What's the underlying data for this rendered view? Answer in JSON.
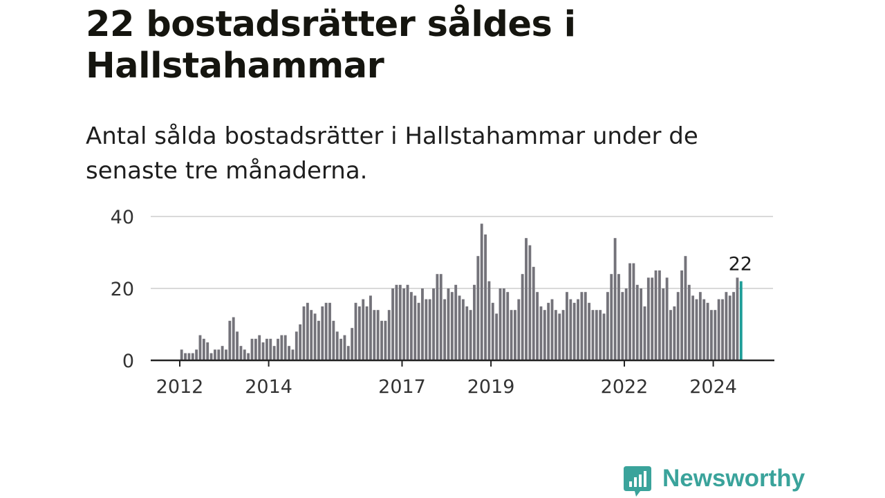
{
  "title": "22 bostadsrätter såldes i Hallstahammar",
  "subtitle": "Antal sålda bostadsrätter i Hallstahammar under de senaste tre månaderna.",
  "brand": {
    "name": "Newsworthy",
    "icon": "newsworthy-logo-icon"
  },
  "colors": {
    "bar": "#74737a",
    "highlight": "#1e9d98",
    "grid": "#d9d9d9",
    "axis": "#222222",
    "brand": "#3aa39b"
  },
  "chart_data": {
    "type": "bar",
    "start": "2012-01",
    "x_ticks": [
      "2012",
      "2014",
      "2017",
      "2019",
      "2022",
      "2024"
    ],
    "y_ticks": [
      "0",
      "20",
      "40"
    ],
    "ylim": [
      0,
      40
    ],
    "grid": true,
    "highlight_label": "22",
    "values": [
      3,
      2,
      2,
      2,
      3,
      7,
      6,
      5,
      2,
      3,
      3,
      4,
      3,
      11,
      12,
      8,
      4,
      3,
      2,
      6,
      6,
      7,
      5,
      6,
      6,
      4,
      6,
      7,
      7,
      4,
      3,
      8,
      10,
      15,
      16,
      14,
      13,
      11,
      15,
      16,
      16,
      11,
      8,
      6,
      7,
      4,
      9,
      16,
      15,
      17,
      15,
      18,
      14,
      14,
      11,
      11,
      14,
      20,
      21,
      21,
      20,
      21,
      19,
      18,
      16,
      20,
      17,
      17,
      20,
      24,
      24,
      17,
      20,
      19,
      21,
      18,
      17,
      15,
      14,
      21,
      29,
      38,
      35,
      22,
      16,
      13,
      20,
      20,
      19,
      14,
      14,
      17,
      24,
      34,
      32,
      26,
      19,
      15,
      14,
      16,
      17,
      14,
      13,
      14,
      19,
      17,
      16,
      17,
      19,
      19,
      16,
      14,
      14,
      14,
      13,
      19,
      24,
      34,
      24,
      19,
      20,
      27,
      27,
      21,
      20,
      15,
      23,
      23,
      25,
      25,
      20,
      23,
      14,
      15,
      19,
      25,
      29,
      21,
      18,
      17,
      19,
      17,
      16,
      14,
      14,
      17,
      17,
      19,
      18,
      19,
      23,
      22
    ]
  }
}
